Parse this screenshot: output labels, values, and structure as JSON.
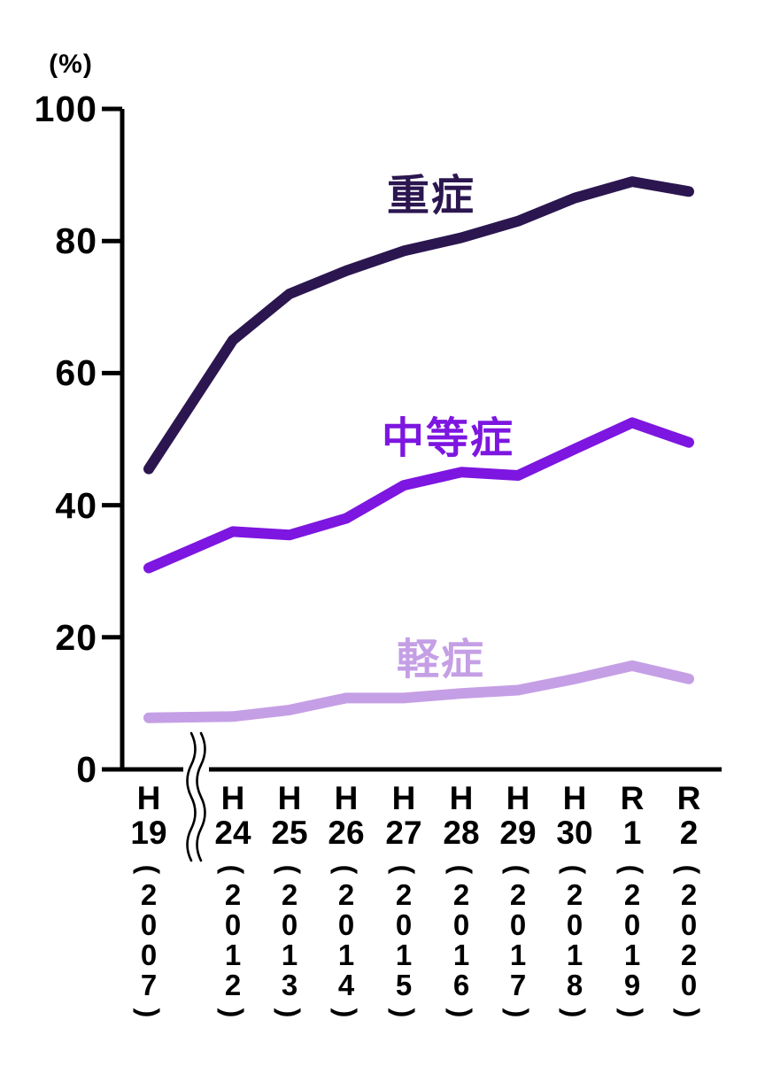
{
  "chart_data": {
    "type": "line",
    "title": "",
    "axis": {
      "unit": "(%)",
      "ylim": [
        0,
        100
      ],
      "yticks": [
        0,
        20,
        40,
        60,
        80,
        100
      ],
      "grid": false,
      "axis_break": "x-axis break between H19 and H24"
    },
    "x_axis": {
      "paren_open": "(",
      "paren_close": ")"
    },
    "categories": [
      {
        "era": "H",
        "num": "19",
        "year": "2007"
      },
      {
        "era": "H",
        "num": "24",
        "year": "2012"
      },
      {
        "era": "H",
        "num": "25",
        "year": "2013"
      },
      {
        "era": "H",
        "num": "26",
        "year": "2014"
      },
      {
        "era": "H",
        "num": "27",
        "year": "2015"
      },
      {
        "era": "H",
        "num": "28",
        "year": "2016"
      },
      {
        "era": "H",
        "num": "29",
        "year": "2017"
      },
      {
        "era": "H",
        "num": "30",
        "year": "2018"
      },
      {
        "era": "R",
        "num": "1",
        "year": "2019"
      },
      {
        "era": "R",
        "num": "2",
        "year": "2020"
      }
    ],
    "series": [
      {
        "name": "重症",
        "name_en": "severe",
        "color": "#2b1650",
        "values": [
          45.5,
          65,
          72,
          75.5,
          78.5,
          80.5,
          83,
          86.5,
          89,
          87.5
        ]
      },
      {
        "name": "中等症",
        "name_en": "moderate",
        "color": "#7d16e0",
        "values": [
          30.5,
          36,
          35.5,
          38,
          43,
          45,
          44.5,
          48.5,
          52.5,
          49.5
        ]
      },
      {
        "name": "軽症",
        "name_en": "mild",
        "color": "#c59fe5",
        "values": [
          7.8,
          8,
          9,
          10.8,
          10.8,
          11.5,
          12,
          13.7,
          15.7,
          13.7
        ]
      }
    ],
    "legend_position": "inline-labels-above-lines"
  }
}
